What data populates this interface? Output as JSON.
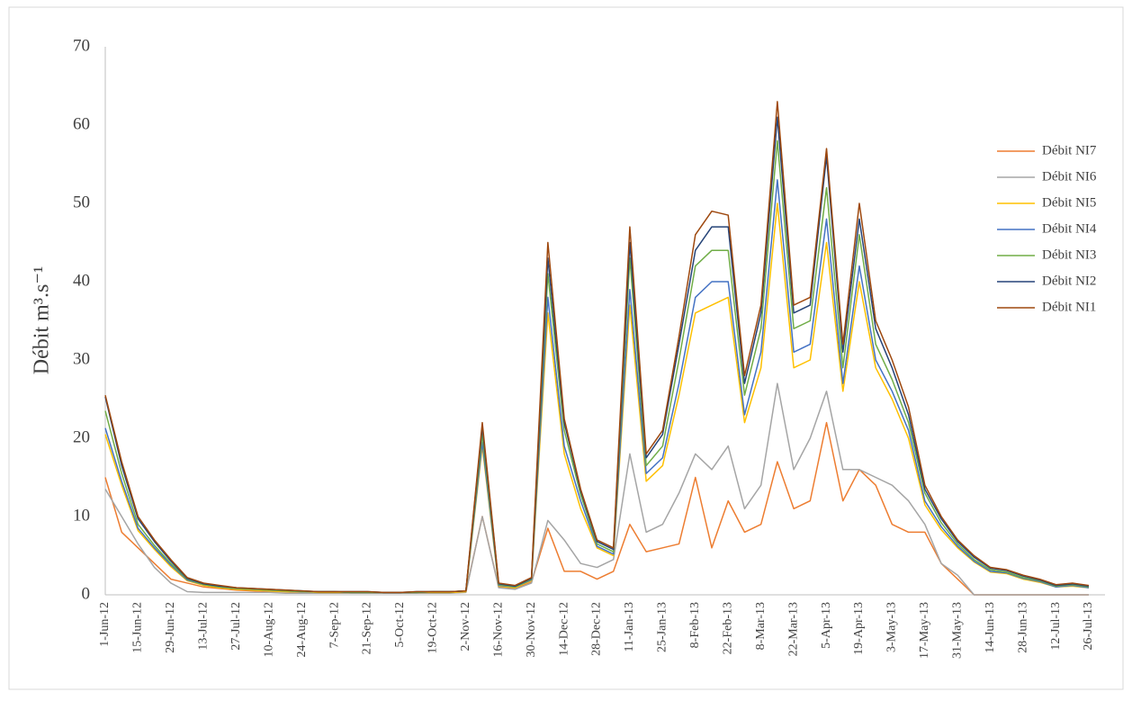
{
  "chart_data": {
    "type": "line",
    "y_label": "Débit m³.s⁻¹",
    "categories": [
      "1-Jun-12",
      null,
      "15-Jun-12",
      null,
      "29-Jun-12",
      null,
      "13-Jul-12",
      null,
      "27-Jul-12",
      null,
      "10-Aug-12",
      null,
      "24-Aug-12",
      null,
      "7-Sep-12",
      null,
      "21-Sep-12",
      null,
      "5-Oct-12",
      null,
      "19-Oct-12",
      null,
      "2-Nov-12",
      null,
      "16-Nov-12",
      null,
      "30-Nov-12",
      null,
      "14-Dec-12",
      null,
      "28-Dec-12",
      null,
      "11-Jan-13",
      null,
      "25-Jan-13",
      null,
      "8-Feb-13",
      null,
      "22-Feb-13",
      null,
      "8-Mar-13",
      null,
      "22-Mar-13",
      null,
      "5-Apr-13",
      null,
      "19-Apr-13",
      null,
      "3-May-13",
      null,
      "17-May-13",
      null,
      "31-May-13",
      null,
      "14-Jun-13",
      null,
      "28-Jun-13",
      null,
      "12-Jul-13",
      null,
      "26-Jul-13"
    ],
    "series": [
      {
        "name": "Débit NI7",
        "color": "#ed7d31",
        "values": [
          15,
          8,
          6,
          4,
          2,
          1.5,
          1,
          0.8,
          0.6,
          0.5,
          0.4,
          0.4,
          0.3,
          0.3,
          0.3,
          0.3,
          0.3,
          0.3,
          0.3,
          0.3,
          0.3,
          0.3,
          0.4,
          10,
          1,
          0.8,
          1.6,
          8.5,
          3,
          3,
          2,
          3,
          9,
          5.5,
          6,
          6.5,
          15,
          6,
          12,
          8,
          9,
          17,
          11,
          12,
          22,
          12,
          16,
          14,
          9,
          8,
          8,
          4,
          2,
          0,
          0,
          0,
          0,
          0,
          0,
          0,
          0
        ]
      },
      {
        "name": "Débit NI6",
        "color": "#a5a5a5",
        "values": [
          13.5,
          10,
          6.5,
          3.5,
          1.5,
          0.4,
          0.3,
          0.3,
          0.3,
          0.3,
          0.3,
          0.2,
          0.2,
          0.2,
          0.2,
          0.2,
          0.2,
          0.2,
          0.2,
          0.2,
          0.2,
          0.2,
          0.3,
          10,
          0.9,
          0.7,
          1.5,
          9.5,
          7,
          4,
          3.5,
          4.5,
          18,
          8,
          9,
          13,
          18,
          16,
          19,
          11,
          14,
          27,
          16,
          20,
          26,
          16,
          16,
          15,
          14,
          12,
          9,
          4,
          2.5,
          0,
          0,
          0,
          0,
          0,
          0,
          0,
          0
        ]
      },
      {
        "name": "Débit NI5",
        "color": "#ffc000",
        "values": [
          20.5,
          14,
          8.2,
          5.8,
          3.6,
          1.8,
          1.2,
          0.9,
          0.7,
          0.6,
          0.5,
          0.4,
          0.4,
          0.3,
          0.3,
          0.3,
          0.3,
          0.3,
          0.3,
          0.3,
          0.3,
          0.3,
          0.4,
          19,
          1.1,
          0.9,
          1.8,
          36,
          18,
          11,
          6,
          5,
          37,
          14.5,
          16.5,
          25.5,
          36,
          37,
          38,
          22,
          29,
          50,
          29,
          30,
          45,
          26,
          40,
          29,
          25,
          20,
          11.5,
          8.3,
          6,
          4.2,
          2.9,
          2.7,
          2,
          1.6,
          1,
          1.1,
          0.9
        ]
      },
      {
        "name": "Débit NI4",
        "color": "#4472c4",
        "values": [
          21.3,
          14.5,
          8.5,
          6,
          3.8,
          1.9,
          1.3,
          1,
          0.8,
          0.7,
          0.6,
          0.5,
          0.4,
          0.4,
          0.4,
          0.3,
          0.3,
          0.3,
          0.3,
          0.3,
          0.4,
          0.4,
          0.5,
          19.5,
          1.2,
          1,
          1.9,
          38,
          19,
          12,
          6.2,
          5.2,
          39,
          15.5,
          17.5,
          27,
          38,
          40,
          40,
          23,
          31,
          53,
          31,
          32,
          48,
          27,
          42,
          30,
          26,
          21,
          12,
          8.7,
          6.2,
          4.3,
          3,
          2.8,
          2.1,
          1.7,
          1,
          1.2,
          0.9
        ]
      },
      {
        "name": "Débit NI3",
        "color": "#70ad47",
        "values": [
          23.5,
          15.5,
          9,
          6.3,
          4,
          2,
          1.3,
          1,
          0.8,
          0.7,
          0.6,
          0.5,
          0.4,
          0.4,
          0.4,
          0.3,
          0.3,
          0.3,
          0.3,
          0.3,
          0.4,
          0.4,
          0.5,
          20.5,
          1.3,
          1,
          2,
          41,
          21,
          12.8,
          6.5,
          5.5,
          43,
          16.5,
          19,
          30,
          42,
          44,
          44,
          25.5,
          34,
          58,
          34,
          35,
          52,
          29,
          46,
          32,
          27.5,
          22,
          13,
          9.2,
          6.5,
          4.5,
          3.2,
          2.9,
          2.2,
          1.8,
          1.1,
          1.3,
          1
        ]
      },
      {
        "name": "Débit NI2",
        "color": "#264478",
        "values": [
          25.3,
          16.5,
          9.7,
          6.8,
          4.3,
          2.1,
          1.4,
          1.1,
          0.9,
          0.8,
          0.7,
          0.6,
          0.5,
          0.4,
          0.4,
          0.4,
          0.4,
          0.3,
          0.3,
          0.4,
          0.4,
          0.4,
          0.5,
          21.5,
          1.4,
          1.1,
          2.1,
          43,
          22,
          13.3,
          6.8,
          5.8,
          45,
          17.5,
          20.5,
          32,
          44,
          47,
          47,
          27,
          36,
          61,
          36,
          37,
          56,
          31,
          48,
          34,
          29,
          23,
          13.5,
          9.7,
          6.8,
          4.8,
          3.4,
          3.1,
          2.4,
          1.9,
          1.2,
          1.4,
          1.1
        ]
      },
      {
        "name": "Débit NI1",
        "color": "#9e480e",
        "values": [
          25.5,
          17,
          10,
          7,
          4.5,
          2.2,
          1.5,
          1.2,
          0.9,
          0.8,
          0.7,
          0.6,
          0.5,
          0.4,
          0.4,
          0.4,
          0.4,
          0.3,
          0.3,
          0.4,
          0.4,
          0.4,
          0.5,
          22,
          1.5,
          1.2,
          2.2,
          45,
          22.5,
          13.5,
          7,
          6,
          47,
          18,
          21,
          33,
          46,
          49,
          48.5,
          28,
          37,
          63,
          37,
          38,
          57,
          32,
          50,
          35,
          30,
          24,
          14,
          10,
          7,
          5,
          3.5,
          3.2,
          2.5,
          2,
          1.3,
          1.5,
          1.2
        ]
      }
    ],
    "ylim": [
      0,
      70
    ],
    "yticks": [
      0,
      10,
      20,
      30,
      40,
      50,
      60,
      70
    ],
    "grid": false,
    "legend": "right"
  }
}
